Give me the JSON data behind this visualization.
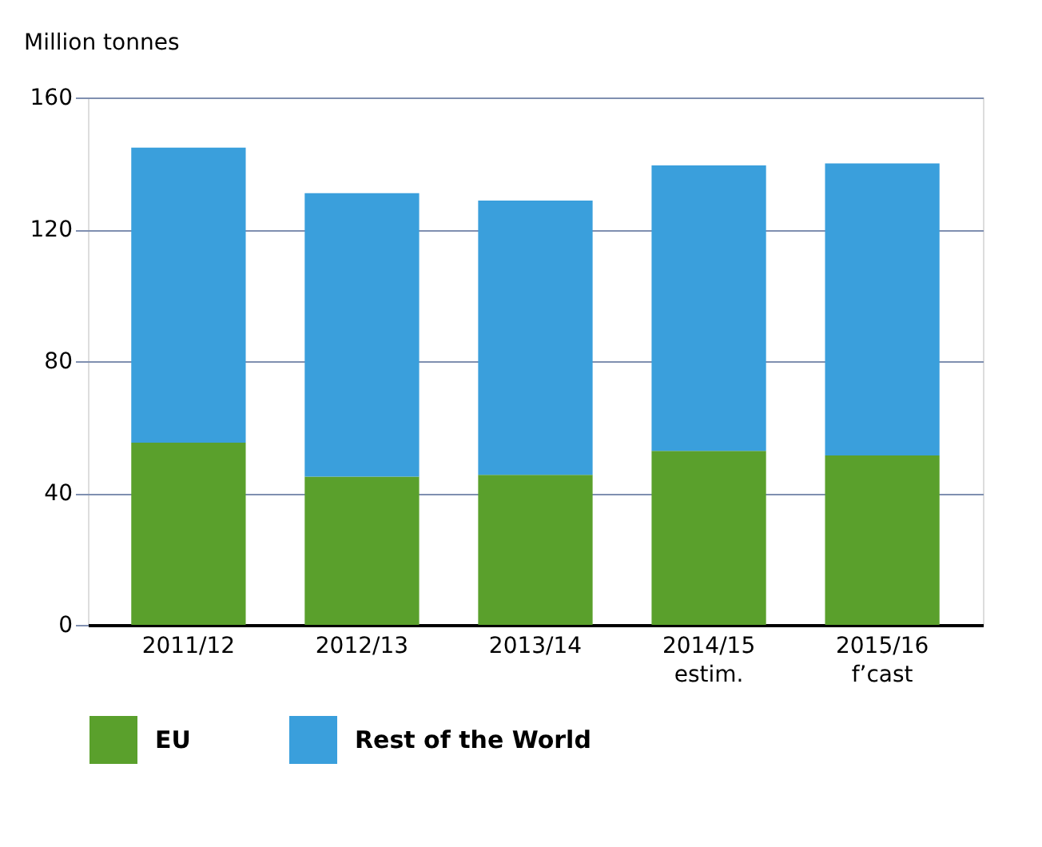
{
  "chart_data": {
    "type": "bar",
    "stacked": true,
    "ylabel": "Million tonnes",
    "categories": [
      "2011/12",
      "2012/13",
      "2013/14",
      "2014/15\nestim.",
      "2015/16\nf’cast"
    ],
    "series": [
      {
        "name": "EU",
        "color": "#5aa02c",
        "values": [
          55.3,
          45,
          45.5,
          52.8,
          51.4
        ]
      },
      {
        "name": "Rest of the World",
        "color": "#3a9fdc",
        "values": [
          89.5,
          86,
          83.2,
          86.6,
          88.6
        ]
      }
    ],
    "ylim": [
      0,
      160
    ],
    "yticks": [
      0,
      40,
      80,
      120,
      160
    ],
    "grid": "y",
    "legend": "bottom"
  }
}
